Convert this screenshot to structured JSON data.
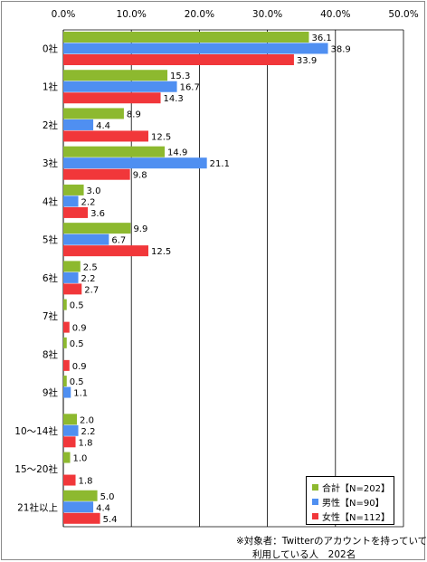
{
  "chart_data": {
    "type": "bar",
    "orientation": "horizontal",
    "categories": [
      "0社",
      "1社",
      "2社",
      "3社",
      "4社",
      "5社",
      "6社",
      "7社",
      "8社",
      "9社",
      "10～14社",
      "15～20社",
      "21社以上"
    ],
    "xlim": [
      0,
      50
    ],
    "xticks": [
      "0.0%",
      "10.0%",
      "20.0%",
      "30.0%",
      "40.0%",
      "50.0%"
    ],
    "grid": true,
    "legend_position": "bottom-right",
    "series": [
      {
        "name": "合計【N=202】",
        "color": "#8db92f",
        "values": [
          36.1,
          15.3,
          8.9,
          14.9,
          3.0,
          9.9,
          2.5,
          0.5,
          0.5,
          0.5,
          2.0,
          1.0,
          5.0
        ],
        "labels": [
          "36.1",
          "15.3",
          "8.9",
          "14.9",
          "3.0",
          "9.9",
          "2.5",
          "0.5",
          "0.5",
          "0.5",
          "2.0",
          "1.0",
          "5.0"
        ]
      },
      {
        "name": "男性【N=90】",
        "color": "#4f8ff1",
        "values": [
          38.9,
          16.7,
          4.4,
          21.1,
          2.2,
          6.7,
          2.2,
          0,
          0,
          1.1,
          2.2,
          0,
          4.4
        ],
        "labels": [
          "38.9",
          "16.7",
          "4.4",
          "21.1",
          "2.2",
          "6.7",
          "2.2",
          "",
          "",
          "1.1",
          "2.2",
          "",
          "4.4"
        ]
      },
      {
        "name": "女性【N=112】",
        "color": "#f1373a",
        "values": [
          33.9,
          14.3,
          12.5,
          9.8,
          3.6,
          12.5,
          2.7,
          0.9,
          0.9,
          0,
          1.8,
          1.8,
          5.4
        ],
        "labels": [
          "33.9",
          "14.3",
          "12.5",
          "9.8",
          "3.6",
          "12.5",
          "2.7",
          "0.9",
          "0.9",
          "",
          "1.8",
          "1.8",
          "5.4"
        ]
      }
    ]
  },
  "footnote": {
    "line1": "※対象者：Twitterのアカウントを持っていて、",
    "line2": "利用している人　202名"
  }
}
